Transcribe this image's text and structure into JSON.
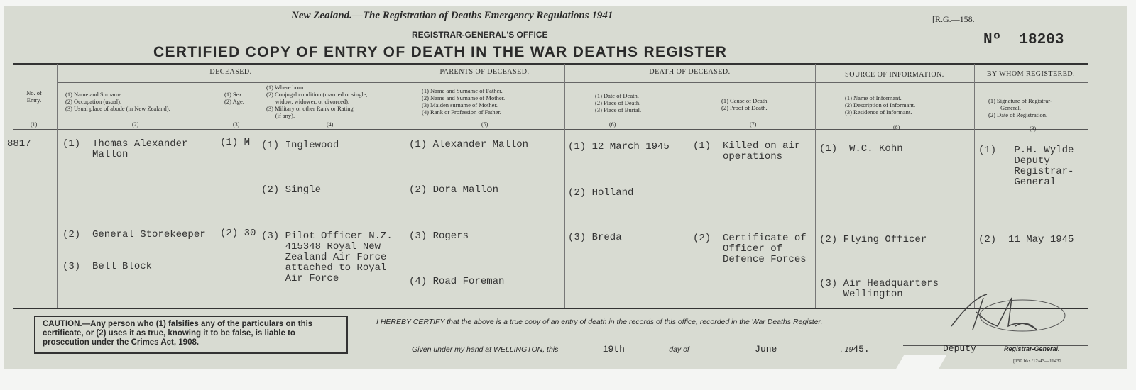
{
  "header": {
    "act": "New Zealand.—The Registration of Deaths Emergency Regulations 1941",
    "office": "REGISTRAR-GENERAL'S OFFICE",
    "title": "CERTIFIED COPY OF ENTRY OF DEATH IN THE WAR DEATHS REGISTER",
    "form_code": "[R.G.—158.",
    "number_label": "Nº",
    "number": "18203"
  },
  "groups": {
    "deceased": "DECEASED.",
    "parents": "PARENTS OF DECEASED.",
    "death": "DEATH OF DECEASED.",
    "source": "SOURCE OF INFORMATION.",
    "registered": "BY WHOM REGISTERED."
  },
  "columns": [
    {
      "label": "No. of Entry.",
      "num": "(1)"
    },
    {
      "label": "(1) Name and Surname.\n(2) Occupation (usual).\n(3) Usual place of abode (in New Zealand).",
      "num": "(2)"
    },
    {
      "label": "(1) Sex.\n(2) Age.",
      "num": "(3)"
    },
    {
      "label": "(1) Where born.\n(2) Conjugal condition (married or single,\n      widow, widower, or divorced).\n(3) Military or other Rank or Rating\n      (if any).",
      "num": "(4)"
    },
    {
      "label": "(1) Name and Surname of Father.\n(2) Name and Surname of Mother.\n(3) Maiden surname of Mother.\n(4) Rank or Profession of Father.",
      "num": "(5)"
    },
    {
      "label": "(1) Date of Death.\n(2) Place of Death.\n(3) Place of Burial.",
      "num": "(6)"
    },
    {
      "label": "(1) Cause of Death.\n(2) Proof of Death.",
      "num": "(7)"
    },
    {
      "label": "(1) Name of Informant.\n(2) Description of Informant.\n(3) Residence of Informant.",
      "num": "(8)"
    },
    {
      "label": "(1) Signature of Registrar-\n        General.\n(2) Date of Registration.",
      "num": "(9)"
    }
  ],
  "entry": {
    "no": "8817",
    "name": "(1)  Thomas Alexander\n     Mallon",
    "occupation": "(2)  General Storekeeper",
    "abode": "(3)  Bell Block",
    "sex": "(1) M",
    "age": "(2) 30",
    "born": "(1) Inglewood",
    "conjugal": "(2) Single",
    "rank": "(3) Pilot Officer N.Z.\n    415348 Royal New\n    Zealand Air Force\n    attached to Royal\n    Air Force",
    "father": "(1) Alexander Mallon",
    "mother": "(2) Dora Mallon",
    "maiden": "(3) Rogers",
    "father_profession": "(4) Road Foreman",
    "date_of_death": "(1) 12 March 1945",
    "place_of_death": "(2) Holland",
    "burial": "(3) Breda",
    "cause": "(1)  Killed on air\n     operations",
    "proof": "(2)  Certificate of\n     Officer of\n     Defence Forces",
    "informant": "(1)  W.C. Kohn",
    "informant_desc": "(2) Flying Officer",
    "informant_res": "(3) Air Headquarters\n    Wellington",
    "registrar": "(1)   P.H. Wylde\n      Deputy\n      Registrar-\n      General",
    "reg_date": "(2)  11 May 1945"
  },
  "footer": {
    "caution": "CAUTION.—Any person who (1) falsifies any of the particulars on this certificate, or (2) uses it as true, knowing it to be false, is liable to prosecution under the Crimes Act, 1908.",
    "certify": "I HEREBY CERTIFY that the above is a true copy of an entry of death in the records of this office, recorded in the War Deaths Register.",
    "given": "Given under my hand at WELLINGTON, this",
    "day": "19th",
    "day_of": "day of",
    "month": "June",
    "year_prefix": ", 19",
    "year": "45.",
    "deputy": "Deputy",
    "registrar_general": "Registrar-General.",
    "print_code": "[150 bks./12/43—11432"
  }
}
